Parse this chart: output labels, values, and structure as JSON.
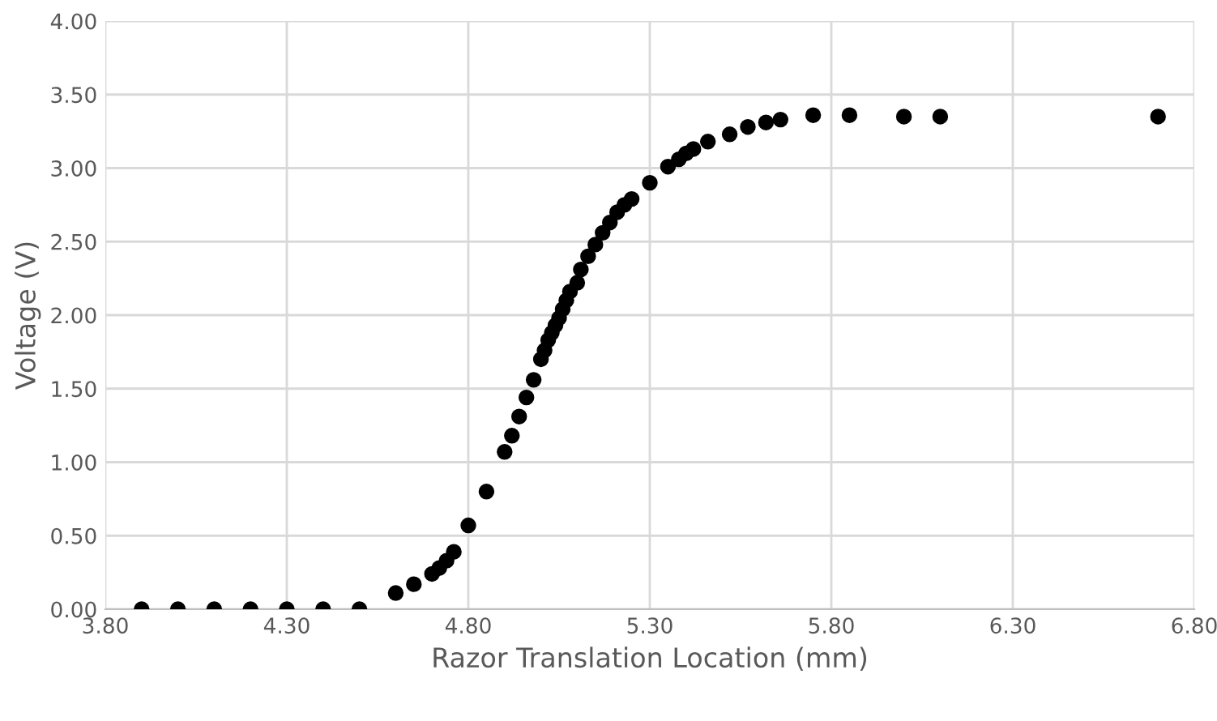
{
  "chart_data": {
    "type": "scatter",
    "xlabel": "Razor Translation Location (mm)",
    "ylabel": "Voltage (V)",
    "x": [
      3.9,
      4.0,
      4.1,
      4.2,
      4.3,
      4.4,
      4.5,
      4.6,
      4.65,
      4.7,
      4.72,
      4.74,
      4.76,
      4.8,
      4.85,
      4.9,
      4.92,
      4.94,
      4.96,
      4.98,
      5.0,
      5.01,
      5.02,
      5.03,
      5.04,
      5.05,
      5.06,
      5.07,
      5.08,
      5.1,
      5.11,
      5.13,
      5.15,
      5.17,
      5.19,
      5.21,
      5.23,
      5.25,
      5.3,
      5.35,
      5.38,
      5.4,
      5.42,
      5.46,
      5.52,
      5.57,
      5.62,
      5.66,
      5.75,
      5.85,
      6.0,
      6.1,
      6.7
    ],
    "series": [
      {
        "color": "#000000",
        "values": [
          0,
          0,
          0,
          0,
          0,
          0,
          0,
          0.11,
          0.17,
          0.24,
          0.28,
          0.33,
          0.39,
          0.57,
          0.8,
          1.07,
          1.18,
          1.31,
          1.44,
          1.56,
          1.7,
          1.76,
          1.83,
          1.88,
          1.93,
          1.98,
          2.04,
          2.1,
          2.16,
          2.22,
          2.31,
          2.4,
          2.48,
          2.56,
          2.63,
          2.7,
          2.75,
          2.79,
          2.9,
          3.01,
          3.06,
          3.1,
          3.13,
          3.18,
          3.23,
          3.28,
          3.31,
          3.33,
          3.36,
          3.36,
          3.35,
          3.35,
          3.35
        ]
      }
    ],
    "marker": "circle",
    "grid": true,
    "legend": false,
    "xlim": [
      3.8,
      6.8
    ],
    "xticks": [
      {
        "value": 3.8,
        "label": "3.80"
      },
      {
        "value": 4.3,
        "label": "4.30"
      },
      {
        "value": 4.8,
        "label": "4.80"
      },
      {
        "value": 5.3,
        "label": "5.30"
      },
      {
        "value": 5.8,
        "label": "5.80"
      },
      {
        "value": 6.3,
        "label": "6.30"
      },
      {
        "value": 6.8,
        "label": "6.80"
      }
    ],
    "ylim": [
      0,
      4
    ],
    "yticks": [
      {
        "value": 0,
        "label": "0.00"
      },
      {
        "value": 0.5,
        "label": "0.50"
      },
      {
        "value": 1,
        "label": "1.00"
      },
      {
        "value": 1.5,
        "label": "1.50"
      },
      {
        "value": 2,
        "label": "2.00"
      },
      {
        "value": 2.5,
        "label": "2.50"
      },
      {
        "value": 3,
        "label": "3.00"
      },
      {
        "value": 3.5,
        "label": "3.50"
      },
      {
        "value": 4,
        "label": "4.00"
      }
    ]
  }
}
